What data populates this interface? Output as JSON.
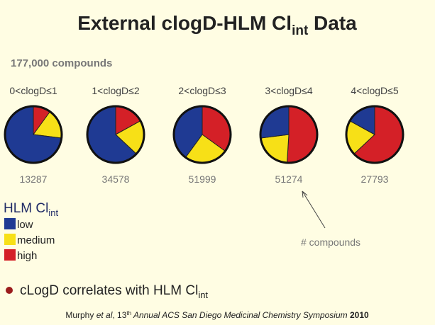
{
  "title": {
    "main": "External clogD-HLM Cl",
    "sub": "int",
    "end": " Data"
  },
  "subtitle": "177,000 compounds",
  "legend_title": {
    "main": "HLM Cl",
    "sub": "int"
  },
  "annotation": "# compounds",
  "bullet": {
    "main": "cLogD correlates with HLM Cl",
    "sub": "int"
  },
  "citation": [
    "Murphy ",
    "et al",
    ", 13",
    "th",
    " Annual ACS San Diego Medicinal Chemistry Symposium ",
    "2010"
  ],
  "chart_data": [
    {
      "type": "pie",
      "title": "0<clogD≤1",
      "categories": [
        "low",
        "medium",
        "high"
      ],
      "colors": [
        "#1f3a93",
        "#f7e017",
        "#d42027"
      ],
      "values": [
        73,
        17,
        10
      ],
      "compounds": "13287"
    },
    {
      "type": "pie",
      "title": "1<clogD≤2",
      "categories": [
        "low",
        "medium",
        "high"
      ],
      "colors": [
        "#1f3a93",
        "#f7e017",
        "#d42027"
      ],
      "values": [
        63,
        20,
        17
      ],
      "compounds": "34578"
    },
    {
      "type": "pie",
      "title": "2<clogD≤3",
      "categories": [
        "low",
        "medium",
        "high"
      ],
      "colors": [
        "#1f3a93",
        "#f7e017",
        "#d42027"
      ],
      "values": [
        40,
        25,
        35
      ],
      "compounds": "51999"
    },
    {
      "type": "pie",
      "title": "3<clogD≤4",
      "categories": [
        "low",
        "medium",
        "high"
      ],
      "colors": [
        "#1f3a93",
        "#f7e017",
        "#d42027"
      ],
      "values": [
        27,
        22,
        51
      ],
      "compounds": "51274"
    },
    {
      "type": "pie",
      "title": "4<clogD≤5",
      "categories": [
        "low",
        "medium",
        "high"
      ],
      "colors": [
        "#1f3a93",
        "#f7e017",
        "#d42027"
      ],
      "values": [
        17,
        20,
        63
      ],
      "compounds": "27793"
    }
  ]
}
